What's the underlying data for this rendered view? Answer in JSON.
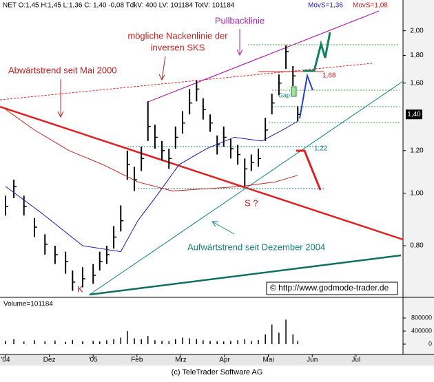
{
  "header": {
    "quote": "NET O:1,45 H:1,45 L:1,36 C: 1,40 -0,08 TdkV: 400 LV: 101184 TotV: 101184",
    "ma_fast": "MovS=1,36",
    "ma_slow": "MovS=1,08"
  },
  "chart_data": {
    "type": "ohlc",
    "y_scale": "log",
    "color": "#000000",
    "x": [
      0,
      0.19,
      0.42,
      0.66,
      0.9,
      1.13,
      1.37,
      1.53,
      1.76,
      2.0,
      2.15,
      2.31,
      2.47,
      2.63,
      2.78,
      2.94,
      3.1,
      3.25,
      3.41,
      3.57,
      3.73,
      3.88,
      4.04,
      4.2,
      4.36,
      4.51,
      4.67,
      4.83,
      4.98,
      5.14,
      5.3,
      5.46,
      5.61,
      5.77,
      5.93,
      6.08,
      6.24,
      6.4,
      6.56,
      6.67
    ],
    "high": [
      0.99,
      1.06,
      0.99,
      0.9,
      0.84,
      0.8,
      0.78,
      0.72,
      0.73,
      0.74,
      0.78,
      0.8,
      0.87,
      0.95,
      1.2,
      1.12,
      1.22,
      1.48,
      1.34,
      1.25,
      1.21,
      1.33,
      1.42,
      1.56,
      1.62,
      1.5,
      1.4,
      1.28,
      1.33,
      1.26,
      1.23,
      1.16,
      1.18,
      1.21,
      1.38,
      1.53,
      1.66,
      1.88,
      1.72,
      1.45
    ],
    "low": [
      0.91,
      0.98,
      0.91,
      0.83,
      0.77,
      0.74,
      0.71,
      0.66,
      0.67,
      0.68,
      0.72,
      0.74,
      0.79,
      0.85,
      1.06,
      1.01,
      1.1,
      1.25,
      1.21,
      1.15,
      1.11,
      1.21,
      1.29,
      1.4,
      1.48,
      1.37,
      1.3,
      1.18,
      1.22,
      1.16,
      1.13,
      1.03,
      1.1,
      1.12,
      1.25,
      1.4,
      1.52,
      1.7,
      1.58,
      1.36
    ],
    "close": [
      0.945,
      1.03,
      0.945,
      0.866,
      0.805,
      0.77,
      0.748,
      0.685,
      0.695,
      0.705,
      0.748,
      0.77,
      0.83,
      0.89,
      1.13,
      1.06,
      1.16,
      1.33,
      1.27,
      1.2,
      1.16,
      1.27,
      1.35,
      1.47,
      1.56,
      1.43,
      1.35,
      1.23,
      1.27,
      1.21,
      1.18,
      1.11,
      1.14,
      1.16,
      1.31,
      1.47,
      1.6,
      1.83,
      1.65,
      1.4
    ],
    "series": [
      {
        "color": "#1a1aa0",
        "x": [
          0,
          0.82,
          1.76,
          2.63,
          3.02,
          3.49,
          3.96,
          4.59,
          5.22,
          5.85,
          6.32,
          6.67
        ],
        "values": [
          1.03,
          0.92,
          0.8,
          0.78,
          0.89,
          1.0,
          1.13,
          1.21,
          1.27,
          1.25,
          1.31,
          1.36
        ]
      },
      {
        "color": "#c02020",
        "x": [
          0,
          0.66,
          1.45,
          2.23,
          3.02,
          3.81,
          4.59,
          5.38,
          6.16,
          6.67
        ],
        "values": [
          1.43,
          1.31,
          1.2,
          1.13,
          1.05,
          1.01,
          1.02,
          1.03,
          1.05,
          1.08
        ]
      }
    ],
    "xlim": [
      -0.126,
      9.072
    ],
    "xticks": [
      {
        "value": 0,
        "label": "'04"
      },
      {
        "value": 1,
        "label": "Dez"
      },
      {
        "value": 2,
        "label": "'05"
      },
      {
        "value": 3,
        "label": "Feb"
      },
      {
        "value": 4,
        "label": "Mrz"
      },
      {
        "value": 5,
        "label": "Apr"
      },
      {
        "value": 6,
        "label": "Mai"
      },
      {
        "value": 7,
        "label": "Jun"
      },
      {
        "value": 8,
        "label": "Jul"
      }
    ],
    "ylim": [
      0.642,
      2.28
    ],
    "yticks": [
      {
        "value": 0.8,
        "label": "0,80"
      },
      {
        "value": 1,
        "label": "1,00"
      },
      {
        "value": 1.2,
        "label": "1,20"
      },
      {
        "value": 1.6,
        "label": "1,60"
      },
      {
        "value": 1.8,
        "label": "1,80"
      },
      {
        "value": 2,
        "label": "2,00"
      }
    ],
    "last": {
      "value": 1.4,
      "label": "1,40"
    },
    "volume": {
      "label": "Volume=101184",
      "color": "#000000",
      "values": [
        100000,
        150000,
        80000,
        120000,
        90000,
        110000,
        70000,
        130000,
        90000,
        100000,
        80000,
        120000,
        150000,
        200000,
        400000,
        180000,
        150000,
        250000,
        120000,
        100000,
        90000,
        150000,
        200000,
        180000,
        160000,
        120000,
        100000,
        90000,
        80000,
        100000,
        120000,
        150000,
        100000,
        130000,
        300000,
        600000,
        350000,
        750000,
        300000,
        101184
      ],
      "ylim": [
        0,
        1263000
      ],
      "yticks": [
        0,
        400000,
        800000
      ]
    },
    "annotations": {
      "downtrend": "Abwärtstrend seit Mai 2000",
      "neckline_1": "mögliche Nackenlinie der",
      "neckline_2": "inversen SKS",
      "pullback": "Pullbacklinie",
      "gap": "Gap",
      "level_high": "1,68",
      "level_low": "1,22",
      "shoulder": "S ?",
      "head": "K",
      "uptrend": "Aufwärtstrend seit Dezember 2004",
      "website": "© http://www.godmode-trader.de"
    },
    "footer": "(c) TeleTrader Software AG"
  }
}
